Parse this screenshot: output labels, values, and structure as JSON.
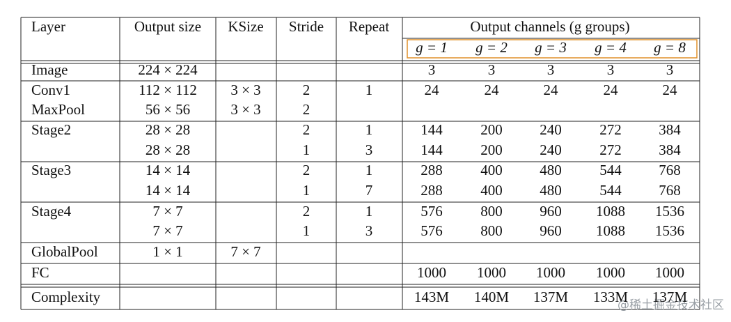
{
  "table": {
    "header": [
      "Layer",
      "Output size",
      "KSize",
      "Stride",
      "Repeat"
    ],
    "group_header": "Output channels (g groups)",
    "groups": [
      "g = 1",
      "g = 2",
      "g = 3",
      "g = 4",
      "g = 8"
    ],
    "rows": [
      [
        "Image",
        "224 × 224",
        null,
        null,
        null,
        "3",
        "3",
        "3",
        "3",
        "3"
      ],
      [
        "Conv1",
        "112 × 112",
        "3 × 3",
        "2",
        "1",
        "24",
        "24",
        "24",
        "24",
        "24"
      ],
      [
        "MaxPool",
        "56 × 56",
        "3 × 3",
        "2",
        null,
        null,
        null,
        null,
        null,
        null
      ],
      [
        "Stage2",
        "28 × 28",
        null,
        "2",
        "1",
        "144",
        "200",
        "240",
        "272",
        "384"
      ],
      [
        null,
        "28 × 28",
        null,
        "1",
        "3",
        "144",
        "200",
        "240",
        "272",
        "384"
      ],
      [
        "Stage3",
        "14 × 14",
        null,
        "2",
        "1",
        "288",
        "400",
        "480",
        "544",
        "768"
      ],
      [
        null,
        "14 × 14",
        null,
        "1",
        "7",
        "288",
        "400",
        "480",
        "544",
        "768"
      ],
      [
        "Stage4",
        "7 × 7",
        null,
        "2",
        "1",
        "576",
        "800",
        "960",
        "1088",
        "1536"
      ],
      [
        null,
        "7 × 7",
        null,
        "1",
        "3",
        "576",
        "800",
        "960",
        "1088",
        "1536"
      ],
      [
        "GlobalPool",
        "1 × 1",
        "7 × 7",
        null,
        null,
        null,
        null,
        null,
        null,
        null
      ],
      [
        "FC",
        null,
        null,
        null,
        null,
        "1000",
        "1000",
        "1000",
        "1000",
        "1000"
      ],
      [
        "Complexity",
        null,
        null,
        null,
        null,
        "143M",
        "140M",
        "137M",
        "133M",
        "137M"
      ]
    ]
  },
  "watermark": "@稀土掘金技术社区"
}
